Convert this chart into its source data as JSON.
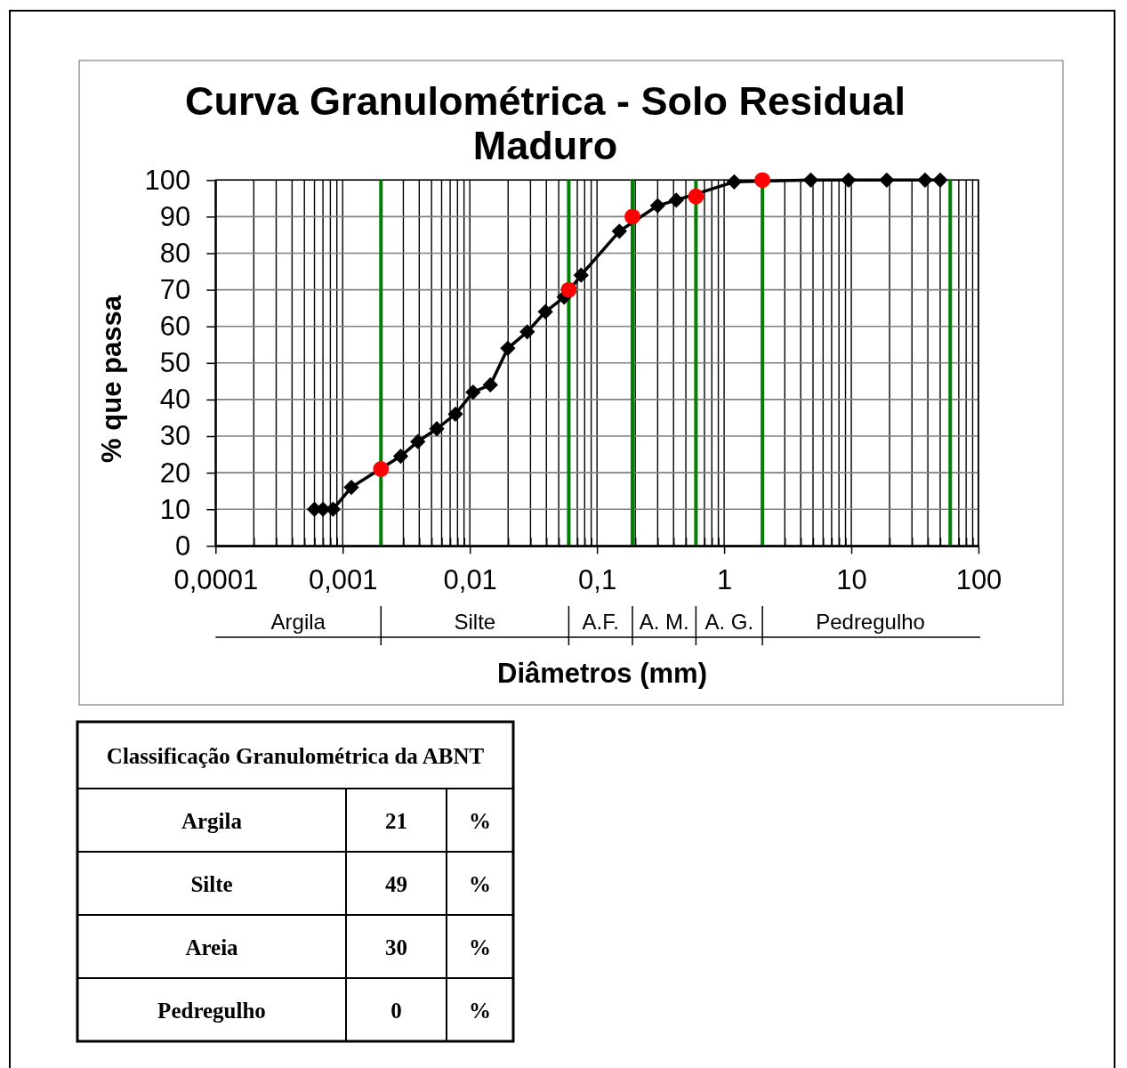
{
  "chart_data": [
    {
      "type": "line",
      "title": "Curva Granulométrica - Solo Residual Maduro",
      "xlabel": "Diâmetros (mm)",
      "ylabel": "% que passa",
      "log": "x",
      "xlim": [
        0.0001,
        100
      ],
      "ylim": [
        0,
        100
      ],
      "xticks": [
        {
          "value": 0.0001,
          "label": "0,0001"
        },
        {
          "value": 0.0002,
          "label": null
        },
        {
          "value": 0.0003,
          "label": null
        },
        {
          "value": 0.0004,
          "label": null
        },
        {
          "value": 0.0005,
          "label": null
        },
        {
          "value": 0.0006,
          "label": null
        },
        {
          "value": 0.0007,
          "label": null
        },
        {
          "value": 0.0008,
          "label": null
        },
        {
          "value": 0.0009,
          "label": null
        },
        {
          "value": 0.001,
          "label": "0,001"
        },
        {
          "value": 0.003,
          "label": null
        },
        {
          "value": 0.004,
          "label": null
        },
        {
          "value": 0.005,
          "label": null
        },
        {
          "value": 0.006,
          "label": null
        },
        {
          "value": 0.007,
          "label": null
        },
        {
          "value": 0.008,
          "label": null
        },
        {
          "value": 0.009,
          "label": null
        },
        {
          "value": 0.01,
          "label": "0,01"
        },
        {
          "value": 0.02,
          "label": null
        },
        {
          "value": 0.03,
          "label": null
        },
        {
          "value": 0.04,
          "label": null
        },
        {
          "value": 0.05,
          "label": null
        },
        {
          "value": 0.07,
          "label": null
        },
        {
          "value": 0.08,
          "label": null
        },
        {
          "value": 0.09,
          "label": null
        },
        {
          "value": 0.1,
          "label": "0,1"
        },
        {
          "value": 0.2,
          "label": null
        },
        {
          "value": 0.3,
          "label": null
        },
        {
          "value": 0.4,
          "label": null
        },
        {
          "value": 0.5,
          "label": null
        },
        {
          "value": 0.7,
          "label": null
        },
        {
          "value": 0.8,
          "label": null
        },
        {
          "value": 0.9,
          "label": null
        },
        1,
        {
          "value": 3,
          "label": null
        },
        {
          "value": 4,
          "label": null
        },
        {
          "value": 5,
          "label": null
        },
        {
          "value": 6,
          "label": null
        },
        {
          "value": 7,
          "label": null
        },
        {
          "value": 8,
          "label": null
        },
        {
          "value": 9,
          "label": null
        },
        10,
        {
          "value": 20,
          "label": null
        },
        {
          "value": 30,
          "label": null
        },
        {
          "value": 40,
          "label": null
        },
        {
          "value": 50,
          "label": null
        },
        {
          "value": 70,
          "label": null
        },
        {
          "value": 80,
          "label": null
        },
        {
          "value": 90,
          "label": null
        },
        100
      ],
      "yticks": [
        0,
        10,
        20,
        30,
        40,
        50,
        60,
        70,
        80,
        90,
        100
      ],
      "grid": true,
      "series": [
        {
          "type": "line",
          "color": "#000000",
          "marker": "diamond",
          "x": [
            0.0006,
            0.0007,
            0.00084,
            0.00117,
            0.00286,
            0.0039,
            0.0055,
            0.0077,
            0.0106,
            0.0145,
            0.0199,
            0.0283,
            0.0393,
            0.0552,
            0.075,
            0.15,
            0.3,
            0.42,
            1.2,
            4.8,
            9.5,
            19,
            38,
            50
          ],
          "values": [
            10,
            10,
            10,
            16,
            24.5,
            28.5,
            32,
            36,
            42,
            44,
            54,
            58.5,
            64,
            68,
            74,
            86,
            93,
            94.5,
            99.5,
            100,
            100,
            100,
            100,
            100
          ]
        },
        {
          "type": "scatter",
          "color": "#ff0000",
          "marker": "circle",
          "x": [
            0.002,
            0.06,
            0.19,
            0.6,
            2
          ],
          "values": [
            21,
            70,
            90,
            95.5,
            100
          ]
        }
      ],
      "ref_lines": [
        {
          "axis": "x",
          "value": 0.002,
          "color": "#008000"
        },
        {
          "axis": "x",
          "value": 0.06,
          "color": "#008000"
        },
        {
          "axis": "x",
          "value": 0.19,
          "color": "#008000"
        },
        {
          "axis": "x",
          "value": 0.6,
          "color": "#008000"
        },
        {
          "axis": "x",
          "value": 2,
          "color": "#008000"
        },
        {
          "axis": "x",
          "value": 60,
          "color": "#008000"
        }
      ],
      "annotations": [
        "Argila",
        "Silte",
        "A.F.",
        "A. M.",
        "A. G.",
        "Pedregulho"
      ]
    },
    {
      "type": "other",
      "title": "Classificação Granulométrica da ABNT",
      "categories": [
        "Argila",
        "Silte",
        "Areia",
        "Pedregulho"
      ],
      "values": [
        21,
        49,
        30,
        0
      ],
      "data_labels": true,
      "annotations": [
        "%",
        "%",
        "%",
        "%"
      ]
    }
  ]
}
